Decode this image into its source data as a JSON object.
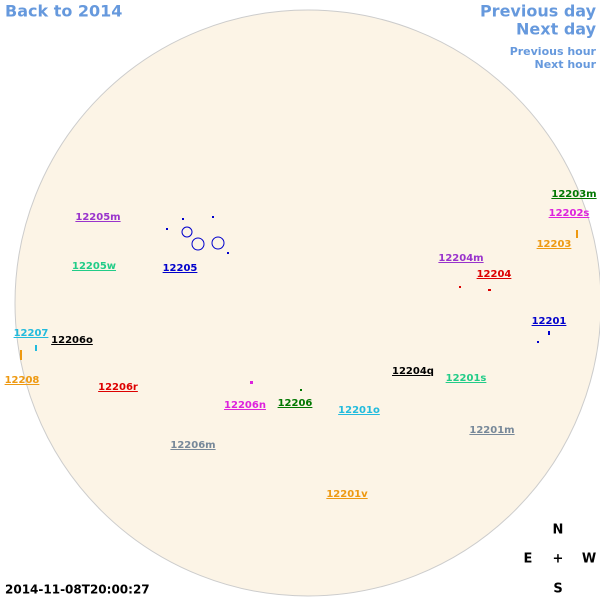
{
  "nav": {
    "back_year": "Back to 2014",
    "previous_day": "Previous day",
    "next_day": "Next day",
    "previous_hour": "Previous hour",
    "next_hour": "Next hour"
  },
  "timestamp": "2014-11-08T20:00:27",
  "compass": {
    "north": "N",
    "east": "E",
    "center": "+",
    "west": "W",
    "south": "S"
  },
  "regions": [
    {
      "label": "12205m",
      "color": "#9933cc"
    },
    {
      "label": "12205",
      "color": "#0000cc"
    },
    {
      "label": "12205w",
      "color": "#22cc88"
    },
    {
      "label": "12207",
      "color": "#22bbdd"
    },
    {
      "label": "12206o",
      "color": "#000000"
    },
    {
      "label": "12208",
      "color": "#ee9911"
    },
    {
      "label": "12206r",
      "color": "#dd0000"
    },
    {
      "label": "12206n",
      "color": "#dd22dd"
    },
    {
      "label": "12206",
      "color": "#007700"
    },
    {
      "label": "12206m",
      "color": "#778899"
    },
    {
      "label": "12201o",
      "color": "#22bbdd"
    },
    {
      "label": "12204q",
      "color": "#000000"
    },
    {
      "label": "12201s",
      "color": "#22cc88"
    },
    {
      "label": "12201m",
      "color": "#778899"
    },
    {
      "label": "12201v",
      "color": "#ee9911"
    },
    {
      "label": "12201",
      "color": "#0000cc"
    },
    {
      "label": "12204m",
      "color": "#9933cc"
    },
    {
      "label": "12204",
      "color": "#dd0000"
    },
    {
      "label": "12203m",
      "color": "#007700"
    },
    {
      "label": "12202s",
      "color": "#dd22dd"
    },
    {
      "label": "12203",
      "color": "#ee9911"
    }
  ]
}
